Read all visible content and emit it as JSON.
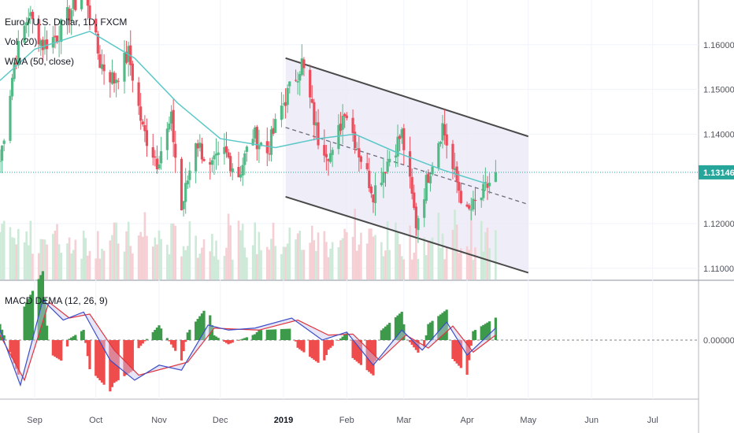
{
  "legend": {
    "symbol": "Euro / U.S. Dollar, 1D, FXCM",
    "volume": "Vol (20)",
    "wma": "WMA (50, close)",
    "macd": "MACD DEMA (12, 26, 9)"
  },
  "colors": {
    "up": "#53b987",
    "down": "#eb4d5c",
    "vol_up": "#cde9d8",
    "vol_down": "#f5cfd3",
    "wma": "#5bc8c8",
    "channel_fill": "#ebe8f5",
    "channel_line": "#4a4a4a",
    "macd_line": "#3b4dc8",
    "signal_line": "#e2353d",
    "hist_up": "#3c9a4a",
    "hist_down": "#ef4d4d",
    "current_price_bg": "#26a69a"
  },
  "chart_data": [
    {
      "type": "candlestick",
      "symbol": "EURUSD",
      "timeframe": "1D",
      "price_axis": {
        "ticks": [
          "1.16000",
          "1.15000",
          "1.14000",
          "1.13146",
          "1.12000",
          "1.11000"
        ],
        "ylim": [
          1.1075,
          1.17
        ]
      },
      "current_price": 1.13146,
      "time_axis": {
        "ticks": [
          "Sep",
          "Oct",
          "Nov",
          "Dec",
          "2019",
          "Feb",
          "Mar",
          "Apr",
          "May",
          "Jun",
          "Jul"
        ],
        "bold_tick": "2019"
      },
      "series": [
        {
          "name": "Euro / U.S. Dollar, 1D, FXCM",
          "kind": "ohlc_daily_close",
          "start": "2018-08-15",
          "end": "2019-04-15",
          "close_path": [
            [
              "2018-08-15",
              1.134
            ],
            [
              "2018-08-22",
              1.156
            ],
            [
              "2018-08-29",
              1.167
            ],
            [
              "2018-09-05",
              1.16
            ],
            [
              "2018-09-12",
              1.162
            ],
            [
              "2018-09-19",
              1.168
            ],
            [
              "2018-09-26",
              1.172
            ],
            [
              "2018-10-03",
              1.156
            ],
            [
              "2018-10-10",
              1.152
            ],
            [
              "2018-10-17",
              1.158
            ],
            [
              "2018-10-24",
              1.141
            ],
            [
              "2018-10-31",
              1.134
            ],
            [
              "2018-11-07",
              1.143
            ],
            [
              "2018-11-12",
              1.123
            ],
            [
              "2018-11-19",
              1.139
            ],
            [
              "2018-11-26",
              1.132
            ],
            [
              "2018-12-03",
              1.136
            ],
            [
              "2018-12-10",
              1.131
            ],
            [
              "2018-12-17",
              1.14
            ],
            [
              "2018-12-24",
              1.136
            ],
            [
              "2018-12-31",
              1.146
            ],
            [
              "2019-01-10",
              1.156
            ],
            [
              "2019-01-18",
              1.139
            ],
            [
              "2019-01-25",
              1.135
            ],
            [
              "2019-01-31",
              1.146
            ],
            [
              "2019-02-07",
              1.136
            ],
            [
              "2019-02-14",
              1.127
            ],
            [
              "2019-02-21",
              1.134
            ],
            [
              "2019-02-28",
              1.14
            ],
            [
              "2019-03-07",
              1.12
            ],
            [
              "2019-03-13",
              1.131
            ],
            [
              "2019-03-20",
              1.142
            ],
            [
              "2019-03-25",
              1.132
            ],
            [
              "2019-04-01",
              1.122
            ],
            [
              "2019-04-08",
              1.126
            ],
            [
              "2019-04-15",
              1.1315
            ]
          ]
        },
        {
          "name": "WMA (50, close)",
          "kind": "line",
          "points": [
            [
              "2018-08-15",
              1.152
            ],
            [
              "2018-09-01",
              1.159
            ],
            [
              "2018-09-28",
              1.163
            ],
            [
              "2018-10-20",
              1.157
            ],
            [
              "2018-11-10",
              1.147
            ],
            [
              "2018-12-01",
              1.139
            ],
            [
              "2018-12-28",
              1.137
            ],
            [
              "2019-01-18",
              1.139
            ],
            [
              "2019-02-05",
              1.14
            ],
            [
              "2019-02-25",
              1.136
            ],
            [
              "2019-03-20",
              1.132
            ],
            [
              "2019-04-10",
              1.129
            ]
          ]
        }
      ],
      "channel": {
        "upper": [
          [
            "2019-01-02",
            1.157
          ],
          [
            "2019-05-01",
            1.1395
          ]
        ],
        "lower": [
          [
            "2019-01-02",
            1.126
          ],
          [
            "2019-05-01",
            1.109
          ]
        ],
        "mid_dashed": [
          [
            "2019-01-02",
            1.1415
          ],
          [
            "2019-05-01",
            1.1243
          ]
        ]
      },
      "volume": {
        "name": "Vol (20)",
        "note": "bars shown as light green/red columns at bottom of price pane"
      }
    },
    {
      "type": "line",
      "name": "MACD DEMA (12, 26, 9)",
      "y_ticks": [
        "0.00000"
      ],
      "series": [
        {
          "name": "MACD",
          "points": [
            [
              "2018-08-15",
              0.001
            ],
            [
              "2018-08-25",
              -0.0045
            ],
            [
              "2018-09-05",
              0.004
            ],
            [
              "2018-09-15",
              0.002
            ],
            [
              "2018-09-25",
              0.0028
            ],
            [
              "2018-10-08",
              -0.002
            ],
            [
              "2018-10-20",
              -0.004
            ],
            [
              "2018-11-01",
              -0.0025
            ],
            [
              "2018-11-12",
              -0.003
            ],
            [
              "2018-11-25",
              0.0015
            ],
            [
              "2018-12-05",
              0.001
            ],
            [
              "2018-12-18",
              0.0012
            ],
            [
              "2019-01-05",
              0.0022
            ],
            [
              "2019-01-20",
              0.0
            ],
            [
              "2019-02-01",
              0.0008
            ],
            [
              "2019-02-14",
              -0.0025
            ],
            [
              "2019-02-28",
              0.001
            ],
            [
              "2019-03-10",
              -0.001
            ],
            [
              "2019-03-22",
              0.0018
            ],
            [
              "2019-04-01",
              -0.0015
            ],
            [
              "2019-04-15",
              0.0012
            ]
          ]
        },
        {
          "name": "Signal",
          "points": [
            [
              "2018-08-15",
              0.0005
            ],
            [
              "2018-08-27",
              -0.004
            ],
            [
              "2018-09-08",
              0.0038
            ],
            [
              "2018-09-18",
              0.0022
            ],
            [
              "2018-09-28",
              0.0026
            ],
            [
              "2018-10-10",
              -0.001
            ],
            [
              "2018-10-22",
              -0.0035
            ],
            [
              "2018-11-04",
              -0.0028
            ],
            [
              "2018-11-15",
              -0.0022
            ],
            [
              "2018-11-28",
              0.0012
            ],
            [
              "2018-12-08",
              0.0011
            ],
            [
              "2018-12-20",
              0.001
            ],
            [
              "2019-01-08",
              0.002
            ],
            [
              "2019-01-23",
              0.0005
            ],
            [
              "2019-02-04",
              0.0006
            ],
            [
              "2019-02-17",
              -0.002
            ],
            [
              "2019-03-02",
              0.0005
            ],
            [
              "2019-03-13",
              -0.0008
            ],
            [
              "2019-03-25",
              0.0014
            ],
            [
              "2019-04-04",
              -0.0012
            ],
            [
              "2019-04-15",
              0.0005
            ]
          ]
        }
      ]
    }
  ]
}
